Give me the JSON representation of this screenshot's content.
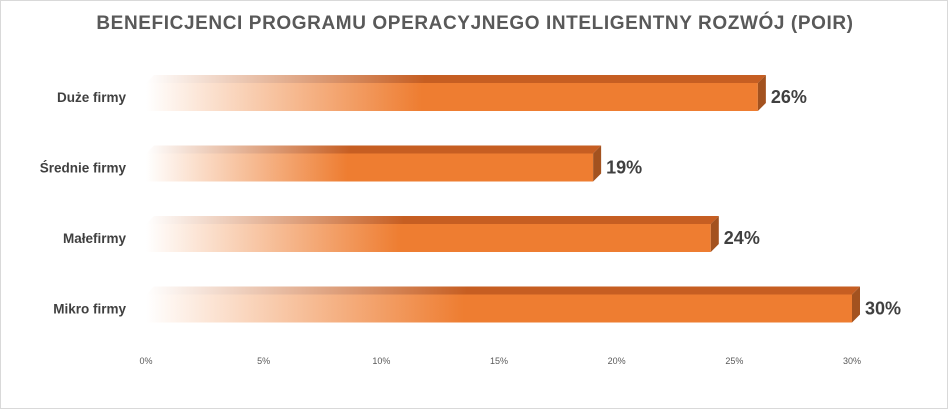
{
  "chart_data": {
    "type": "bar",
    "orientation": "horizontal",
    "title": "BENEFICJENCI PROGRAMU OPERACYJNEGO INTELIGENTNY ROZWÓJ (POIR)",
    "categories": [
      "Duże firmy",
      "Średnie firmy",
      "Małefirmy",
      "Mikro firmy"
    ],
    "values": [
      26,
      19,
      24,
      30
    ],
    "data_labels": [
      "26%",
      "19%",
      "24%",
      "30%"
    ],
    "xlim": [
      0,
      30
    ],
    "x_ticks": [
      0,
      5,
      10,
      15,
      20,
      25,
      30
    ],
    "x_tick_labels": [
      "0%",
      "5%",
      "10%",
      "15%",
      "20%",
      "25%",
      "30%"
    ],
    "grid": false,
    "legend": "none",
    "colors": {
      "bar": "#ee7d31",
      "bar_top": "#c65e22",
      "bar_side": "#a3521f",
      "bar_fade": "#ffffff"
    }
  }
}
